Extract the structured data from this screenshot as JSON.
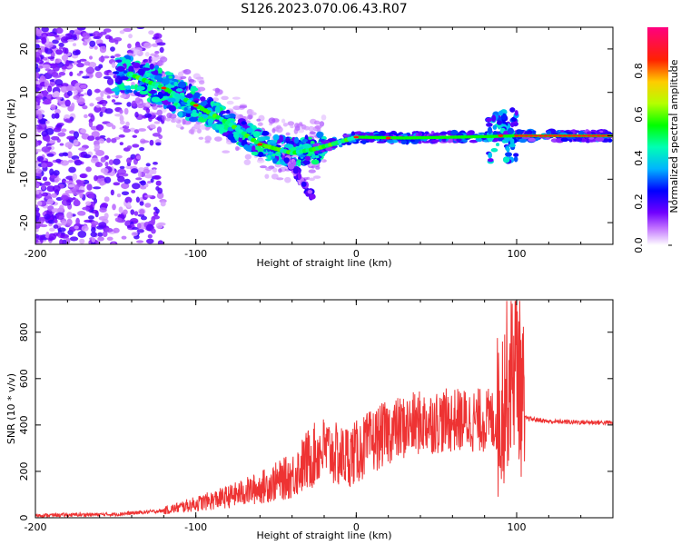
{
  "title": "S126.2023.070.06.43.R07",
  "chart_data": [
    {
      "type": "heatmap",
      "name": "spectrogram",
      "xlabel": "Height of straight line (km)",
      "ylabel": "Frequency (Hz)",
      "xlim": [
        -200,
        160
      ],
      "ylim": [
        -25,
        25
      ],
      "xticks": [
        "-200",
        "-100",
        "0",
        "100"
      ],
      "yticks": [
        "-20",
        "-10",
        "0",
        "10",
        "20"
      ],
      "colorbar": {
        "label": "Normalized spectral amplitude",
        "range": [
          0,
          1
        ],
        "ticks": [
          "0.0",
          "0.2",
          "0.4",
          "0.6",
          "0.8"
        ]
      },
      "ridge": {
        "height_km": [
          -140,
          -120,
          -100,
          -80,
          -60,
          -40,
          -25,
          0,
          30,
          80,
          100,
          160
        ],
        "frequency_hz": [
          14,
          11,
          7,
          3,
          -2,
          -4,
          -3,
          -0.3,
          -0.5,
          -0.2,
          0,
          0
        ]
      }
    },
    {
      "type": "line",
      "name": "snr",
      "xlabel": "Height of straight line (km)",
      "ylabel": "SNR (10 * v/v)",
      "xlim": [
        -200,
        160
      ],
      "ylim": [
        0,
        940
      ],
      "xticks": [
        "-200",
        "-100",
        "0",
        "100"
      ],
      "yticks": [
        "0",
        "200",
        "400",
        "600",
        "800"
      ],
      "series": [
        {
          "name": "SNR",
          "color": "#ee3333",
          "x": [
            -200,
            -150,
            -120,
            -100,
            -80,
            -60,
            -40,
            -30,
            -20,
            -10,
            0,
            10,
            20,
            40,
            60,
            80,
            88,
            95,
            100,
            105,
            120,
            140,
            160
          ],
          "y": [
            10,
            15,
            30,
            60,
            90,
            130,
            180,
            250,
            300,
            260,
            280,
            330,
            370,
            410,
            420,
            420,
            420,
            600,
            700,
            430,
            415,
            412,
            410
          ]
        }
      ]
    }
  ]
}
